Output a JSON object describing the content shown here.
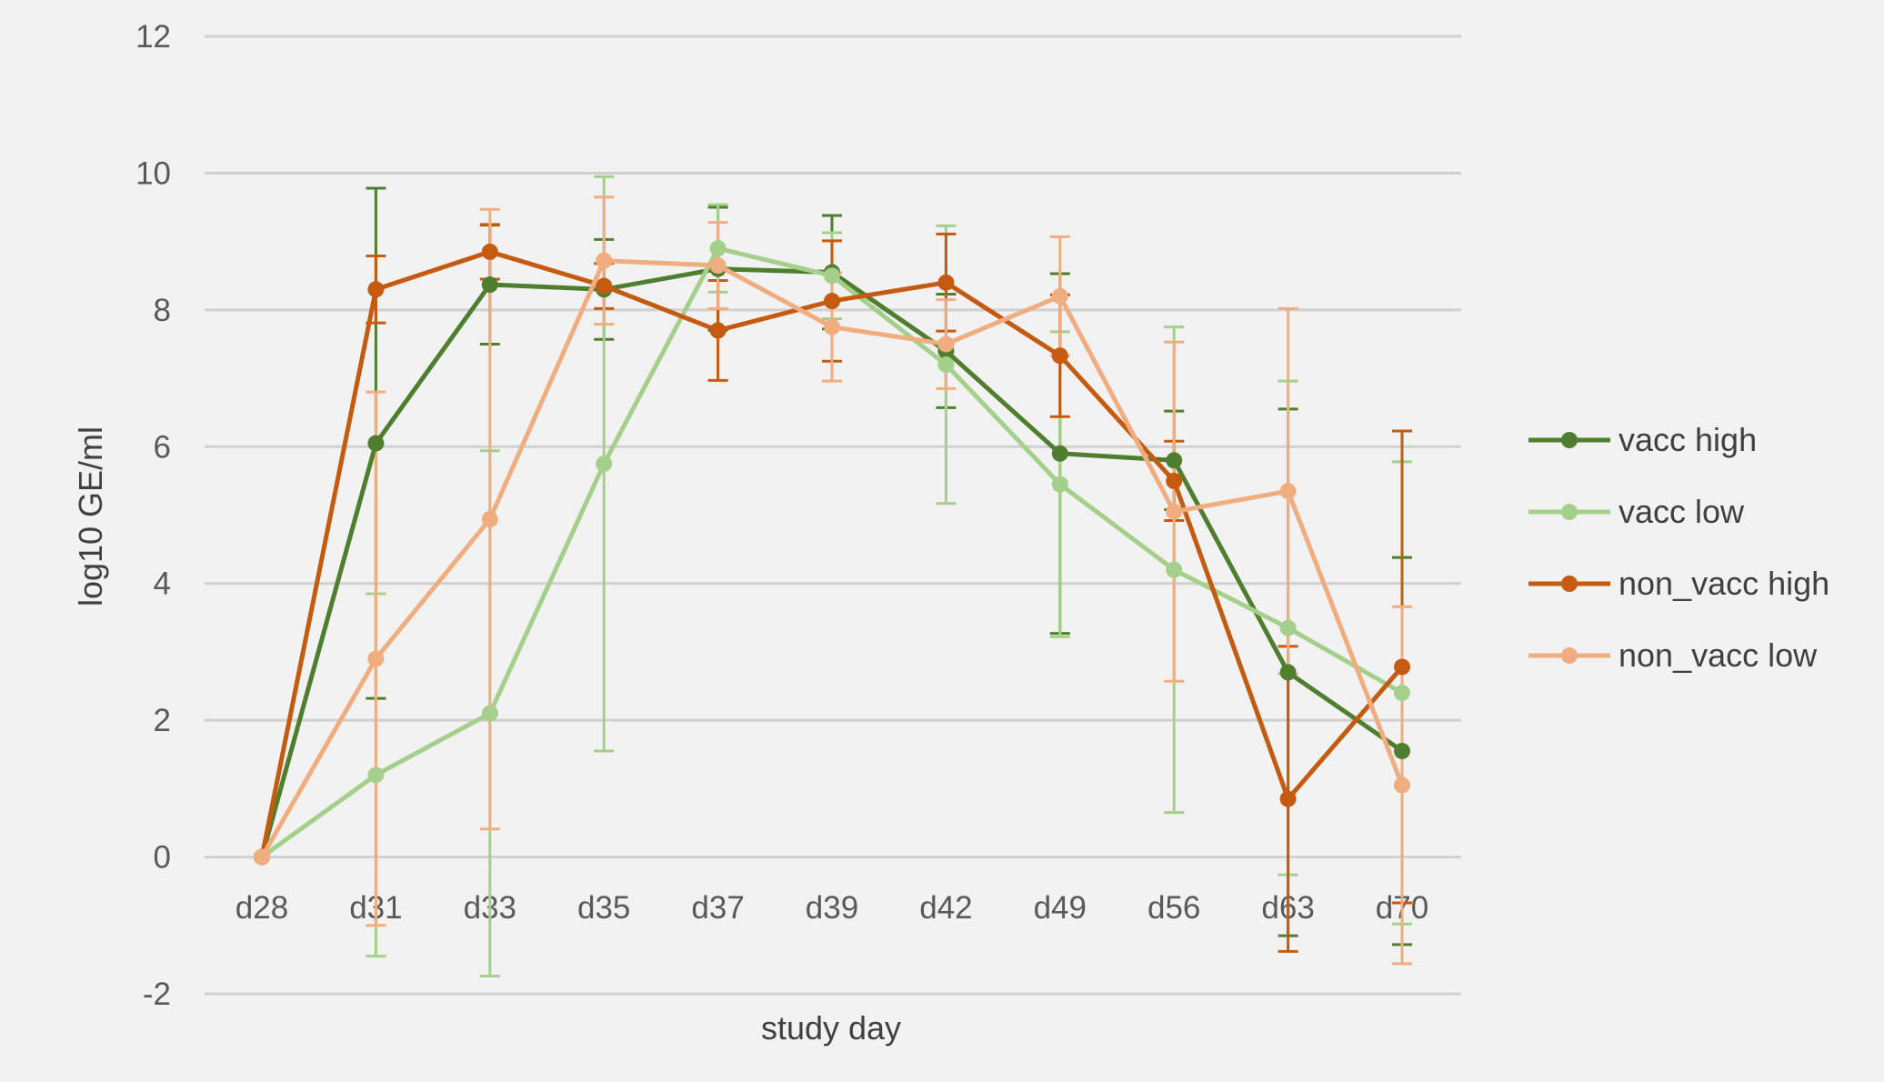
{
  "chart_data": {
    "type": "line",
    "title": "",
    "xlabel": "study day",
    "ylabel": "log10 GE/ml",
    "ylim": [
      -2,
      12
    ],
    "yticks": [
      "-2",
      "0",
      "2",
      "4",
      "6",
      "8",
      "10",
      "12"
    ],
    "grid": true,
    "legend_position": "right",
    "error_bars": true,
    "categories": [
      "d28",
      "d31",
      "d33",
      "d35",
      "d37",
      "d39",
      "d42",
      "d49",
      "d56",
      "d63",
      "d70"
    ],
    "series": [
      {
        "name": "vacc high",
        "color": "#4f7f2e",
        "values": [
          0,
          6.05,
          8.37,
          8.3,
          8.6,
          8.55,
          7.4,
          5.9,
          5.8,
          2.7,
          1.55
        ],
        "errors": [
          0,
          3.73,
          0.87,
          0.73,
          0.9,
          0.83,
          0.83,
          2.63,
          0.72,
          3.85,
          2.83
        ]
      },
      {
        "name": "vacc low",
        "color": "#a5d08b",
        "values": [
          0,
          1.2,
          2.1,
          5.75,
          8.9,
          8.5,
          7.2,
          5.45,
          4.2,
          3.35,
          2.4
        ],
        "errors": [
          0,
          2.65,
          3.84,
          4.2,
          0.64,
          0.63,
          2.03,
          2.23,
          3.55,
          3.61,
          3.38
        ]
      },
      {
        "name": "non_vacc high",
        "color": "#c55a11",
        "values": [
          0,
          8.3,
          8.85,
          8.35,
          7.7,
          8.13,
          8.4,
          7.33,
          5.5,
          0.85,
          2.78
        ],
        "errors": [
          0,
          0.49,
          0.4,
          0.33,
          0.73,
          0.88,
          0.71,
          0.89,
          0.58,
          2.23,
          3.45
        ]
      },
      {
        "name": "non_vacc low",
        "color": "#f0ad80",
        "values": [
          0,
          2.9,
          4.94,
          8.72,
          8.65,
          7.75,
          7.5,
          8.2,
          5.05,
          5.35,
          1.05
        ],
        "errors": [
          0,
          3.9,
          4.53,
          0.93,
          0.63,
          0.79,
          0.65,
          0.87,
          2.48,
          2.67,
          2.61
        ]
      }
    ]
  }
}
